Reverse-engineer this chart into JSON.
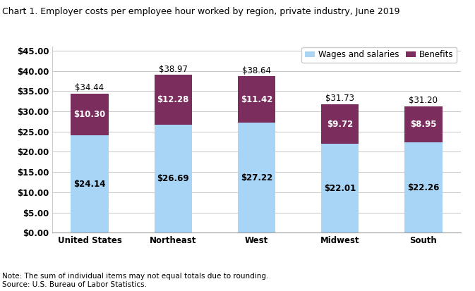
{
  "title": "Chart 1. Employer costs per employee hour worked by region, private industry, June 2019",
  "categories": [
    "United States",
    "Northeast",
    "West",
    "Midwest",
    "South"
  ],
  "wages": [
    24.14,
    26.69,
    27.22,
    22.01,
    22.26
  ],
  "benefits": [
    10.3,
    12.28,
    11.42,
    9.72,
    8.95
  ],
  "totals": [
    34.44,
    38.97,
    38.64,
    31.73,
    31.2
  ],
  "wages_color": "#a8d4f5",
  "benefits_color": "#7b2d5e",
  "wages_label": "Wages and salaries",
  "benefits_label": "Benefits",
  "ylabel_ticks": [
    0.0,
    5.0,
    10.0,
    15.0,
    20.0,
    25.0,
    30.0,
    35.0,
    40.0,
    45.0
  ],
  "ylim": [
    0,
    46
  ],
  "note": "Note: The sum of individual items may not equal totals due to rounding.\nSource: U.S. Bureau of Labor Statistics.",
  "title_fontsize": 9,
  "label_fontsize": 8.5,
  "tick_fontsize": 8.5,
  "note_fontsize": 7.5,
  "bar_width": 0.45
}
